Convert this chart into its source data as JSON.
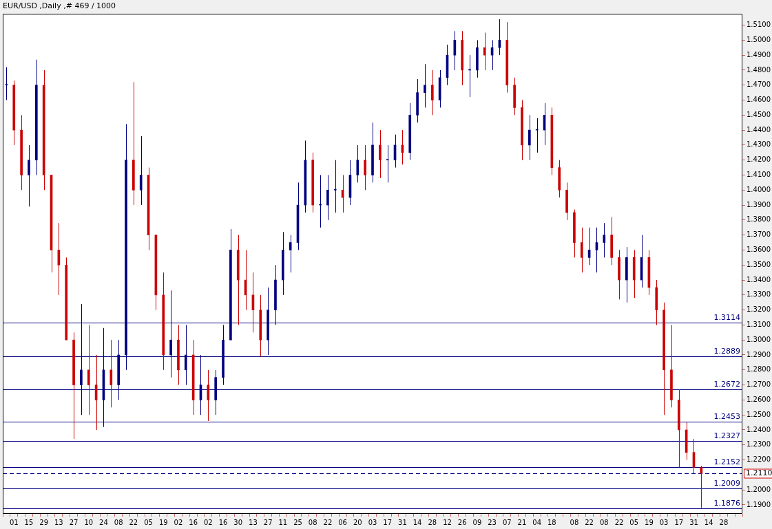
{
  "chart_data": {
    "type": "candlestick",
    "title": "EUR/USD ,Daily ,# 469 / 1000",
    "colors": [
      "#000080",
      "#cc0000",
      "#cc0000",
      "#000080",
      "#000080",
      "#cc0000",
      "#cc0000",
      "#cc0000",
      "#cc0000",
      "#cc0000",
      "#000080",
      "#cc0000",
      "#cc0000",
      "#000080",
      "#cc0000",
      "#000080",
      "#000080",
      "#cc0000",
      "#000080",
      "#cc0000",
      "#cc0000",
      "#cc0000",
      "#000080",
      "#cc0000",
      "#000080",
      "#cc0000",
      "#000080",
      "#cc0000",
      "#000080",
      "#000080",
      "#000080",
      "#cc0000",
      "#cc0000",
      "#cc0000",
      "#cc0000",
      "#000080",
      "#000080",
      "#000080",
      "#000080",
      "#000080",
      "#000080",
      "#cc0000",
      "#000080",
      "#000080",
      "#000080",
      "#cc0000",
      "#000080",
      "#000080",
      "#cc0000",
      "#000080",
      "#cc0000",
      "#000080",
      "#000080",
      "#cc0000",
      "#000080",
      "#000080",
      "#000080",
      "#cc0000",
      "#000080",
      "#000080",
      "#000080",
      "#cc0000",
      "#000080",
      "#000080",
      "#cc0000",
      "#000080",
      "#000080",
      "#cc0000",
      "#cc0000",
      "#cc0000",
      "#000080",
      "#000080",
      "#000080",
      "#cc0000",
      "#cc0000",
      "#cc0000",
      "#cc0000",
      "#cc0000",
      "#000080",
      "#000080",
      "#000080",
      "#cc0000",
      "#cc0000",
      "#000080",
      "#cc0000",
      "#000080",
      "#cc0000",
      "#cc0000",
      "#cc0000",
      "#cc0000",
      "#cc0000",
      "#cc0000",
      "#cc0000",
      "#cc0000",
      null,
      null,
      null,
      null,
      null
    ],
    "categories": [
      null,
      "01",
      null,
      "15",
      null,
      "29",
      null,
      "13",
      null,
      "27",
      null,
      "10",
      null,
      "24",
      null,
      "08",
      null,
      "22",
      null,
      "05",
      null,
      "19",
      null,
      "02",
      null,
      "16",
      null,
      "02",
      null,
      "16",
      null,
      "30",
      null,
      "13",
      null,
      "27",
      null,
      "11",
      null,
      "25",
      null,
      "08",
      null,
      "22",
      null,
      "06",
      null,
      "20",
      null,
      "03",
      null,
      "17",
      null,
      "31",
      null,
      "14",
      null,
      "28",
      null,
      "12",
      null,
      "26",
      null,
      "09",
      null,
      "23",
      null,
      "07",
      null,
      "21",
      null,
      "04",
      null,
      "18",
      null,
      null,
      "08",
      null,
      "22",
      null,
      "08",
      null,
      "22",
      null,
      "05",
      null,
      "19",
      null,
      "03",
      null,
      "17",
      null,
      "31",
      null,
      "14",
      null,
      "28",
      null,
      null
    ],
    "ohlc": [
      [
        1.47,
        1.482,
        1.46,
        1.47
      ],
      [
        1.47,
        1.473,
        1.43,
        1.44
      ],
      [
        1.44,
        1.45,
        1.4,
        1.41
      ],
      [
        1.41,
        1.43,
        1.389,
        1.42
      ],
      [
        1.42,
        1.487,
        1.41,
        1.47
      ],
      [
        1.47,
        1.48,
        1.4,
        1.41
      ],
      [
        1.41,
        1.41,
        1.345,
        1.36
      ],
      [
        1.36,
        1.378,
        1.33,
        1.35
      ],
      [
        1.35,
        1.355,
        1.3,
        1.3
      ],
      [
        1.3,
        1.305,
        1.234,
        1.27
      ],
      [
        1.27,
        1.324,
        1.25,
        1.28
      ],
      [
        1.28,
        1.31,
        1.25,
        1.27
      ],
      [
        1.27,
        1.29,
        1.24,
        1.26
      ],
      [
        1.26,
        1.308,
        1.242,
        1.28
      ],
      [
        1.28,
        1.3,
        1.255,
        1.27
      ],
      [
        1.27,
        1.3,
        1.26,
        1.29
      ],
      [
        1.29,
        1.444,
        1.28,
        1.42
      ],
      [
        1.42,
        1.472,
        1.39,
        1.4
      ],
      [
        1.4,
        1.436,
        1.39,
        1.41
      ],
      [
        1.41,
        1.415,
        1.36,
        1.37
      ],
      [
        1.37,
        1.37,
        1.32,
        1.33
      ],
      [
        1.33,
        1.345,
        1.28,
        1.29
      ],
      [
        1.29,
        1.333,
        1.275,
        1.3
      ],
      [
        1.3,
        1.31,
        1.27,
        1.28
      ],
      [
        1.28,
        1.31,
        1.27,
        1.29
      ],
      [
        1.29,
        1.3,
        1.25,
        1.26
      ],
      [
        1.26,
        1.29,
        1.25,
        1.27
      ],
      [
        1.27,
        1.28,
        1.246,
        1.26
      ],
      [
        1.26,
        1.28,
        1.25,
        1.275
      ],
      [
        1.275,
        1.31,
        1.27,
        1.3
      ],
      [
        1.3,
        1.374,
        1.3,
        1.36
      ],
      [
        1.36,
        1.37,
        1.31,
        1.34
      ],
      [
        1.34,
        1.36,
        1.32,
        1.33
      ],
      [
        1.33,
        1.345,
        1.305,
        1.32
      ],
      [
        1.32,
        1.33,
        1.289,
        1.3
      ],
      [
        1.3,
        1.335,
        1.29,
        1.32
      ],
      [
        1.32,
        1.35,
        1.31,
        1.34
      ],
      [
        1.34,
        1.372,
        1.33,
        1.36
      ],
      [
        1.36,
        1.37,
        1.345,
        1.365
      ],
      [
        1.365,
        1.405,
        1.36,
        1.39
      ],
      [
        1.39,
        1.433,
        1.385,
        1.42
      ],
      [
        1.42,
        1.425,
        1.385,
        1.39
      ],
      [
        1.39,
        1.41,
        1.375,
        1.39
      ],
      [
        1.39,
        1.41,
        1.38,
        1.4
      ],
      [
        1.4,
        1.42,
        1.385,
        1.4
      ],
      [
        1.4,
        1.41,
        1.385,
        1.395
      ],
      [
        1.395,
        1.42,
        1.39,
        1.41
      ],
      [
        1.41,
        1.43,
        1.405,
        1.42
      ],
      [
        1.42,
        1.43,
        1.4,
        1.41
      ],
      [
        1.41,
        1.445,
        1.405,
        1.43
      ],
      [
        1.43,
        1.44,
        1.408,
        1.42
      ],
      [
        1.42,
        1.43,
        1.405,
        1.42
      ],
      [
        1.42,
        1.437,
        1.415,
        1.43
      ],
      [
        1.43,
        1.44,
        1.417,
        1.425
      ],
      [
        1.425,
        1.458,
        1.42,
        1.45
      ],
      [
        1.45,
        1.474,
        1.445,
        1.465
      ],
      [
        1.465,
        1.484,
        1.455,
        1.47
      ],
      [
        1.47,
        1.48,
        1.45,
        1.46
      ],
      [
        1.46,
        1.48,
        1.455,
        1.475
      ],
      [
        1.475,
        1.497,
        1.47,
        1.49
      ],
      [
        1.49,
        1.506,
        1.48,
        1.5
      ],
      [
        1.5,
        1.506,
        1.47,
        1.48
      ],
      [
        1.48,
        1.49,
        1.462,
        1.48
      ],
      [
        1.48,
        1.5,
        1.475,
        1.495
      ],
      [
        1.495,
        1.505,
        1.48,
        1.49
      ],
      [
        1.49,
        1.5,
        1.48,
        1.495
      ],
      [
        1.495,
        1.514,
        1.49,
        1.5
      ],
      [
        1.5,
        1.512,
        1.465,
        1.47
      ],
      [
        1.47,
        1.475,
        1.45,
        1.455
      ],
      [
        1.455,
        1.46,
        1.42,
        1.43
      ],
      [
        1.43,
        1.45,
        1.42,
        1.44
      ],
      [
        1.44,
        1.448,
        1.425,
        1.44
      ],
      [
        1.44,
        1.458,
        1.43,
        1.45
      ],
      [
        1.45,
        1.455,
        1.41,
        1.415
      ],
      [
        1.415,
        1.42,
        1.395,
        1.4
      ],
      [
        1.4,
        1.405,
        1.38,
        1.385
      ],
      [
        1.385,
        1.387,
        1.355,
        1.365
      ],
      [
        1.365,
        1.375,
        1.345,
        1.355
      ],
      [
        1.355,
        1.375,
        1.35,
        1.36
      ],
      [
        1.36,
        1.375,
        1.345,
        1.365
      ],
      [
        1.365,
        1.378,
        1.355,
        1.37
      ],
      [
        1.37,
        1.382,
        1.35,
        1.355
      ],
      [
        1.355,
        1.36,
        1.327,
        1.34
      ],
      [
        1.34,
        1.362,
        1.325,
        1.355
      ],
      [
        1.355,
        1.36,
        1.328,
        1.34
      ],
      [
        1.34,
        1.37,
        1.335,
        1.355
      ],
      [
        1.355,
        1.36,
        1.33,
        1.335
      ],
      [
        1.335,
        1.34,
        1.31,
        1.32
      ],
      [
        1.32,
        1.325,
        1.25,
        1.28
      ],
      [
        1.28,
        1.31,
        1.255,
        1.26
      ],
      [
        1.26,
        1.267,
        1.215,
        1.24
      ],
      [
        1.24,
        1.245,
        1.22,
        1.225
      ],
      [
        1.225,
        1.234,
        1.211,
        1.215
      ],
      [
        1.215,
        1.216,
        1.188,
        1.211
      ],
      null,
      null,
      null,
      null,
      null
    ],
    "ylim": [
      1.184,
      1.5176
    ],
    "yticks": [
      {
        "value": 1.19,
        "label": "1.1900"
      },
      {
        "value": 1.2,
        "label": "1.2000"
      },
      {
        "value": 1.22,
        "label": "1.2200"
      },
      {
        "value": 1.23,
        "label": "1.2300"
      },
      {
        "value": 1.24,
        "label": "1.2400"
      },
      {
        "value": 1.25,
        "label": "1.2500"
      },
      {
        "value": 1.26,
        "label": "1.2600"
      },
      {
        "value": 1.27,
        "label": "1.2700"
      },
      {
        "value": 1.28,
        "label": "1.2800"
      },
      {
        "value": 1.29,
        "label": "1.2900"
      },
      {
        "value": 1.3,
        "label": "1.3000"
      },
      {
        "value": 1.31,
        "label": "1.3100"
      },
      {
        "value": 1.32,
        "label": "1.3200"
      },
      {
        "value": 1.33,
        "label": "1.3300"
      },
      {
        "value": 1.34,
        "label": "1.3400"
      },
      {
        "value": 1.35,
        "label": "1.3500"
      },
      {
        "value": 1.36,
        "label": "1.3600"
      },
      {
        "value": 1.37,
        "label": "1.3700"
      },
      {
        "value": 1.38,
        "label": "1.3800"
      },
      {
        "value": 1.39,
        "label": "1.3900"
      },
      {
        "value": 1.4,
        "label": "1.4000"
      },
      {
        "value": 1.41,
        "label": "1.4100"
      },
      {
        "value": 1.42,
        "label": "1.4200"
      },
      {
        "value": 1.43,
        "label": "1.4300"
      },
      {
        "value": 1.44,
        "label": "1.4400"
      },
      {
        "value": 1.45,
        "label": "1.4500"
      },
      {
        "value": 1.46,
        "label": "1.4600"
      },
      {
        "value": 1.47,
        "label": "1.4700"
      },
      {
        "value": 1.48,
        "label": "1.4800"
      },
      {
        "value": 1.49,
        "label": "1.4900"
      },
      {
        "value": 1.5,
        "label": "1.5000"
      },
      {
        "value": 1.51,
        "label": "1.5100"
      }
    ],
    "ref_lines": [
      {
        "axis": "y",
        "value": 1.3114,
        "label": "1.3114",
        "color": "#000080"
      },
      {
        "axis": "y",
        "value": 1.2889,
        "label": "1.2889",
        "color": "#000080"
      },
      {
        "axis": "y",
        "value": 1.2672,
        "label": "1.2672",
        "color": "#000080"
      },
      {
        "axis": "y",
        "value": 1.2453,
        "label": "1.2453",
        "color": "#000080"
      },
      {
        "axis": "y",
        "value": 1.2327,
        "label": "1.2327",
        "color": "#000080"
      },
      {
        "axis": "y",
        "value": 1.2152,
        "label": "1.2152",
        "color": "#000080"
      },
      {
        "axis": "y",
        "value": 1.2009,
        "label": "1.2009",
        "color": "#000080"
      },
      {
        "axis": "y",
        "value": 1.1876,
        "label": "1.1876",
        "color": "#000080"
      },
      {
        "axis": "y",
        "value": 1.211,
        "label": "1.2110",
        "color": "#000080",
        "line_style": "dashed"
      }
    ],
    "grid": false,
    "legend": false
  }
}
